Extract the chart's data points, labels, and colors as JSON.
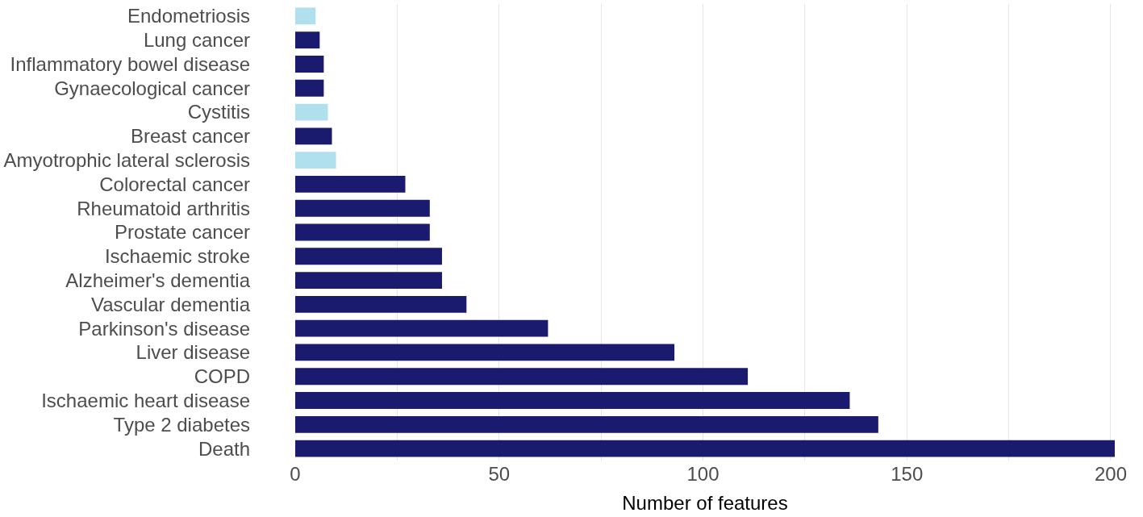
{
  "chart_data": {
    "type": "bar",
    "orientation": "horizontal",
    "xlabel": "Number of features",
    "categories": [
      "Endometriosis",
      "Lung cancer",
      "Inflammatory bowel disease",
      "Gynaecological cancer",
      "Cystitis",
      "Breast cancer",
      "Amyotrophic lateral sclerosis",
      "Colorectal cancer",
      "Rheumatoid arthritis",
      "Prostate cancer",
      "Ischaemic stroke",
      "Alzheimer's dementia",
      "Vascular dementia",
      "Parkinson's disease",
      "Liver disease",
      "COPD",
      "Ischaemic heart disease",
      "Type 2 diabetes",
      "Death"
    ],
    "values": [
      5,
      6,
      7,
      7,
      8,
      9,
      10,
      27,
      33,
      33,
      36,
      36,
      42,
      62,
      93,
      111,
      136,
      143,
      201
    ],
    "colors": [
      "#b0dfee",
      "#1a1a6e",
      "#1a1a6e",
      "#1a1a6e",
      "#b0dfee",
      "#1a1a6e",
      "#b0dfee",
      "#1a1a6e",
      "#1a1a6e",
      "#1a1a6e",
      "#1a1a6e",
      "#1a1a6e",
      "#1a1a6e",
      "#1a1a6e",
      "#1a1a6e",
      "#1a1a6e",
      "#1a1a6e",
      "#1a1a6e",
      "#1a1a6e"
    ],
    "xlim": [
      0,
      201
    ],
    "xticks": [
      0,
      {
        "value": 25,
        "label": null
      },
      50,
      {
        "value": 75,
        "label": null
      },
      100,
      {
        "value": 125,
        "label": null
      },
      150,
      {
        "value": 175,
        "label": null
      },
      200
    ],
    "grid": "x",
    "legend": false
  }
}
